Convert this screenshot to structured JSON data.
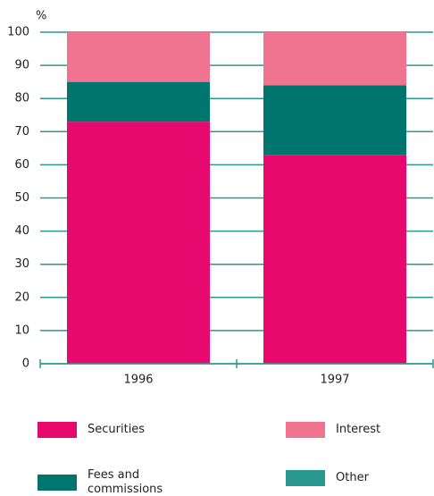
{
  "chart_data": {
    "type": "stacked_bar",
    "y_label": "%",
    "categories": [
      "1996",
      "1997"
    ],
    "series": [
      {
        "name": "Securities",
        "color": "#e8096e",
        "values": [
          73,
          63
        ]
      },
      {
        "name": "Fees and commissions",
        "color": "#00756e",
        "values": [
          12,
          21
        ]
      },
      {
        "name": "Other",
        "color": "#2a9a90",
        "values": [
          0,
          0
        ]
      },
      {
        "name": "Interest",
        "color": "#f07490",
        "values": [
          15,
          16
        ]
      }
    ],
    "ylim": [
      0,
      100
    ],
    "yticks": [
      0,
      10,
      20,
      30,
      40,
      50,
      60,
      70,
      80,
      90,
      100
    ],
    "grid": true,
    "grid_color": "#2a9a90"
  }
}
